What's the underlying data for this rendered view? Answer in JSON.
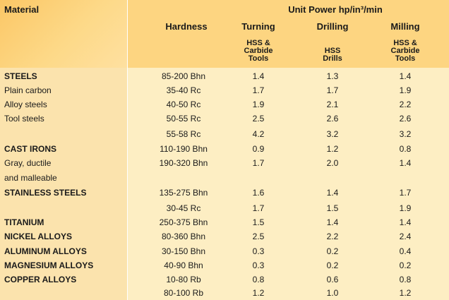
{
  "header": {
    "material": "Material",
    "unit_power": "Unit Power hp/in³/min",
    "hardness": "Hardness",
    "turning": "Turning",
    "drilling": "Drilling",
    "milling": "Milling",
    "turning_sub": [
      "HSS &",
      "Carbide",
      "Tools"
    ],
    "drilling_sub": [
      "HSS",
      "Drills"
    ],
    "milling_sub": [
      "HSS &",
      "Carbide",
      "Tools"
    ]
  },
  "rows": [
    {
      "material": "STEELS",
      "bold": true,
      "hardness": "85-200 Bhn",
      "turning": "1.4",
      "drilling": "1.3",
      "milling": "1.4"
    },
    {
      "material": "Plain carbon",
      "bold": false,
      "hardness": "35-40 Rc",
      "turning": "1.7",
      "drilling": "1.7",
      "milling": "1.9"
    },
    {
      "material": "Alloy steels",
      "bold": false,
      "hardness": "40-50 Rc",
      "turning": "1.9",
      "drilling": "2.1",
      "milling": "2.2"
    },
    {
      "material": "Tool steels",
      "bold": false,
      "hardness": "50-55 Rc",
      "turning": "2.5",
      "drilling": "2.6",
      "milling": "2.6"
    },
    {
      "material": "",
      "bold": false,
      "hardness": "55-58 Rc",
      "turning": "4.2",
      "drilling": "3.2",
      "milling": "3.2"
    },
    {
      "material": "CAST IRONS",
      "bold": true,
      "hardness": "110-190 Bhn",
      "turning": "0.9",
      "drilling": "1.2",
      "milling": "0.8"
    },
    {
      "material": "Gray, ductile",
      "bold": false,
      "hardness": "190-320 Bhn",
      "turning": "1.7",
      "drilling": "2.0",
      "milling": "1.4"
    },
    {
      "material": "and malleable",
      "bold": false,
      "hardness": "",
      "turning": "",
      "drilling": "",
      "milling": ""
    },
    {
      "material": "STAINLESS STEELS",
      "bold": true,
      "hardness": "135-275 Bhn",
      "turning": "1.6",
      "drilling": "1.4",
      "milling": "1.7"
    },
    {
      "material": "",
      "bold": false,
      "hardness": "30-45 Rc",
      "turning": "1.7",
      "drilling": "1.5",
      "milling": "1.9"
    },
    {
      "material": "TITANIUM",
      "bold": true,
      "hardness": "250-375 Bhn",
      "turning": "1.5",
      "drilling": "1.4",
      "milling": "1.4"
    },
    {
      "material": "NICKEL ALLOYS",
      "bold": true,
      "hardness": "80-360 Bhn",
      "turning": "2.5",
      "drilling": "2.2",
      "milling": "2.4"
    },
    {
      "material": "ALUMINUM ALLOYS",
      "bold": true,
      "hardness": "30-150 Bhn",
      "turning": "0.3",
      "drilling": "0.2",
      "milling": "0.4"
    },
    {
      "material": "MAGNESIUM ALLOYS",
      "bold": true,
      "hardness": "40-90 Bhn",
      "turning": "0.3",
      "drilling": "0.2",
      "milling": "0.2"
    },
    {
      "material": "COPPER ALLOYS",
      "bold": true,
      "hardness": "10-80 Rb",
      "turning": "0.8",
      "drilling": "0.6",
      "milling": "0.8"
    },
    {
      "material": "",
      "bold": false,
      "hardness": "80-100 Rb",
      "turning": "1.2",
      "drilling": "1.0",
      "milling": "1.2"
    }
  ]
}
